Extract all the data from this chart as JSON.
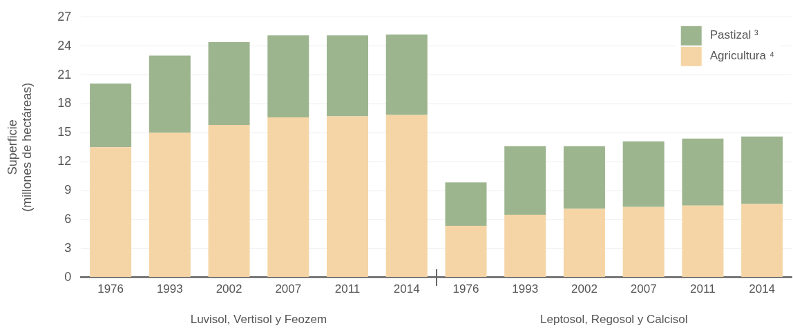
{
  "chart_data": {
    "type": "bar",
    "stacked": true,
    "ylabel": "Superficie\n(millones de hectáreas)",
    "categories": [
      "1976",
      "1993",
      "2002",
      "2007",
      "2011",
      "2014",
      "1976",
      "1993",
      "2002",
      "2007",
      "2011",
      "2014"
    ],
    "series": [
      {
        "name": "Agricultura ⁴",
        "color": "#f5d5a5",
        "values": [
          13.5,
          15.0,
          15.8,
          16.6,
          16.7,
          16.85,
          5.35,
          6.5,
          7.1,
          7.3,
          7.45,
          7.6
        ]
      },
      {
        "name": "Pastizal ³",
        "color": "#9db58f",
        "values": [
          6.6,
          8.0,
          8.6,
          8.5,
          8.4,
          8.35,
          4.5,
          7.1,
          6.5,
          6.8,
          6.95,
          7.0
        ]
      }
    ],
    "annotations": [
      "Luvisol, Vertisol y Feozem",
      "Leptosol, Regosol y Calcisol"
    ],
    "ylim": [
      0,
      27
    ],
    "yticks": [
      0,
      3,
      6,
      9,
      12,
      15,
      18,
      21,
      24,
      27
    ],
    "grid": "y",
    "legend": "top right"
  }
}
